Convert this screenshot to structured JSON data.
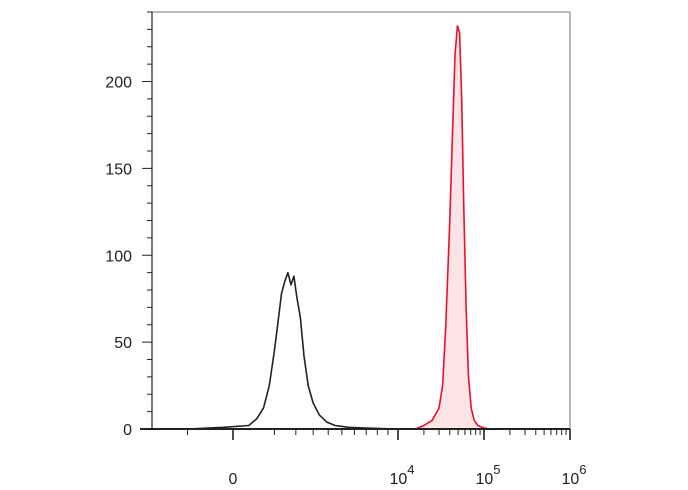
{
  "chart_data": {
    "type": "area",
    "title": "",
    "xlabel": "",
    "ylabel": "",
    "x_scale": "biexponential",
    "ylim": [
      0,
      240
    ],
    "y_ticks": [
      0,
      50,
      100,
      150,
      200
    ],
    "y_tick_labels": [
      "0",
      "50",
      "100",
      "150",
      "200"
    ],
    "x_ticks": [
      {
        "value": 0,
        "base": "0",
        "exp": ""
      },
      {
        "value": 10000,
        "base": "10",
        "exp": "4"
      },
      {
        "value": 100000,
        "base": "10",
        "exp": "5"
      },
      {
        "value": 1000000,
        "base": "10",
        "exp": "6"
      }
    ],
    "grid": false,
    "legend": "none",
    "series": [
      {
        "color": "#222222",
        "fill": "none",
        "points": [
          [
            -1000,
            0
          ],
          [
            -200,
            1
          ],
          [
            200,
            2
          ],
          [
            400,
            6
          ],
          [
            600,
            12
          ],
          [
            800,
            25
          ],
          [
            1000,
            45
          ],
          [
            1150,
            62
          ],
          [
            1300,
            78
          ],
          [
            1450,
            85
          ],
          [
            1600,
            90
          ],
          [
            1750,
            83
          ],
          [
            1900,
            88
          ],
          [
            2050,
            76
          ],
          [
            2250,
            64
          ],
          [
            2450,
            42
          ],
          [
            2700,
            25
          ],
          [
            3000,
            15
          ],
          [
            3400,
            8
          ],
          [
            3900,
            4
          ],
          [
            4500,
            2
          ],
          [
            5500,
            1
          ],
          [
            7000,
            0.5
          ],
          [
            10000,
            0
          ]
        ]
      },
      {
        "color": "#e8112d",
        "fill": "#fbe3e6",
        "points": [
          [
            16000,
            0
          ],
          [
            20000,
            2
          ],
          [
            25000,
            5
          ],
          [
            30000,
            12
          ],
          [
            33000,
            25
          ],
          [
            36000,
            60
          ],
          [
            40000,
            120
          ],
          [
            43000,
            170
          ],
          [
            46000,
            215
          ],
          [
            49000,
            232
          ],
          [
            52000,
            228
          ],
          [
            55000,
            190
          ],
          [
            58000,
            130
          ],
          [
            62000,
            70
          ],
          [
            66000,
            30
          ],
          [
            71000,
            12
          ],
          [
            77000,
            5
          ],
          [
            85000,
            2
          ],
          [
            100000,
            0.5
          ],
          [
            120000,
            0
          ]
        ]
      }
    ],
    "colors": {
      "axis": "#222222",
      "frame": "#777777"
    }
  }
}
